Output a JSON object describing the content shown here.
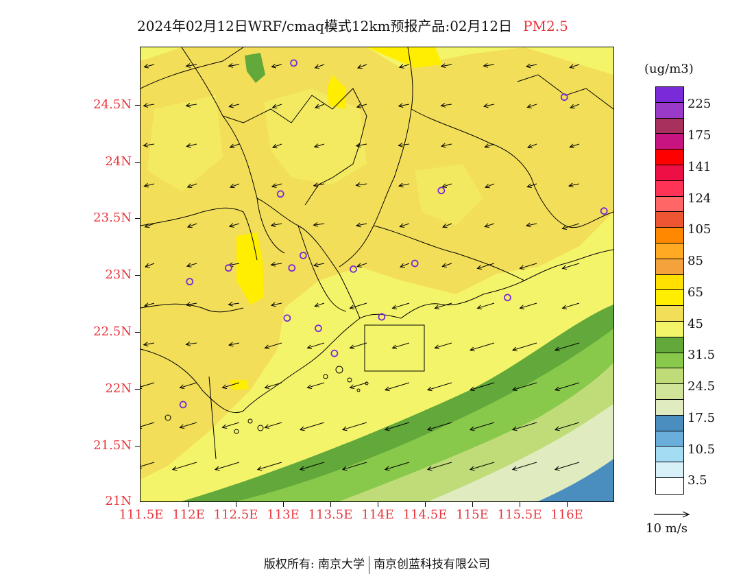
{
  "title": {
    "main": "2024年02月12日WRF/cmaq模式12km预报产品:02月12日",
    "variable": "PM2.5"
  },
  "y_axis": {
    "ticks": [
      "24.5N",
      "24N",
      "23.5N",
      "23N",
      "22.5N",
      "22N",
      "21.5N",
      "21N"
    ]
  },
  "x_axis": {
    "ticks": [
      "111.5E",
      "112E",
      "112.5E",
      "113E",
      "113.5E",
      "114E",
      "114.5E",
      "115E",
      "115.5E",
      "116E"
    ]
  },
  "colorbar": {
    "unit": "(ug/m3)",
    "colors": [
      "#7a2ad8",
      "#9a3ac8",
      "#a8305c",
      "#c81480",
      "#ff0000",
      "#ee1044",
      "#ff3355",
      "#ff6666",
      "#ee5533",
      "#ff8800",
      "#ffaa22",
      "#f4a23c",
      "#ffe000",
      "#ffee00",
      "#f2de58",
      "#f4f46a",
      "#62a83a",
      "#88c84a",
      "#c0dc78",
      "#d0e49a",
      "#e0ecc0",
      "#4a8ec0",
      "#6aaedc",
      "#a4dcf4",
      "#d8f0f8",
      "#ffffff"
    ],
    "labels": [
      "225",
      "175",
      "141",
      "124",
      "105",
      "85",
      "65",
      "45",
      "31.5",
      "24.5",
      "17.5",
      "10.5",
      "3.5"
    ]
  },
  "wind_reference": {
    "label": "10 m/s"
  },
  "footer": {
    "copyright": "版权所有: 南京大学",
    "company": "南京创蓝科技有限公司"
  },
  "stations": [
    {
      "lon": 113.12,
      "lat": 24.85
    },
    {
      "lon": 115.98,
      "lat": 24.55
    },
    {
      "lon": 112.98,
      "lat": 23.7
    },
    {
      "lon": 114.68,
      "lat": 23.73
    },
    {
      "lon": 116.4,
      "lat": 23.55
    },
    {
      "lon": 112.43,
      "lat": 23.05
    },
    {
      "lon": 112.02,
      "lat": 22.93
    },
    {
      "lon": 113.1,
      "lat": 23.05
    },
    {
      "lon": 113.22,
      "lat": 23.16
    },
    {
      "lon": 113.75,
      "lat": 23.04
    },
    {
      "lon": 114.4,
      "lat": 23.09
    },
    {
      "lon": 115.38,
      "lat": 22.79
    },
    {
      "lon": 113.05,
      "lat": 22.61
    },
    {
      "lon": 113.38,
      "lat": 22.52
    },
    {
      "lon": 114.05,
      "lat": 22.62
    },
    {
      "lon": 113.55,
      "lat": 22.3
    },
    {
      "lon": 111.95,
      "lat": 21.85
    }
  ]
}
